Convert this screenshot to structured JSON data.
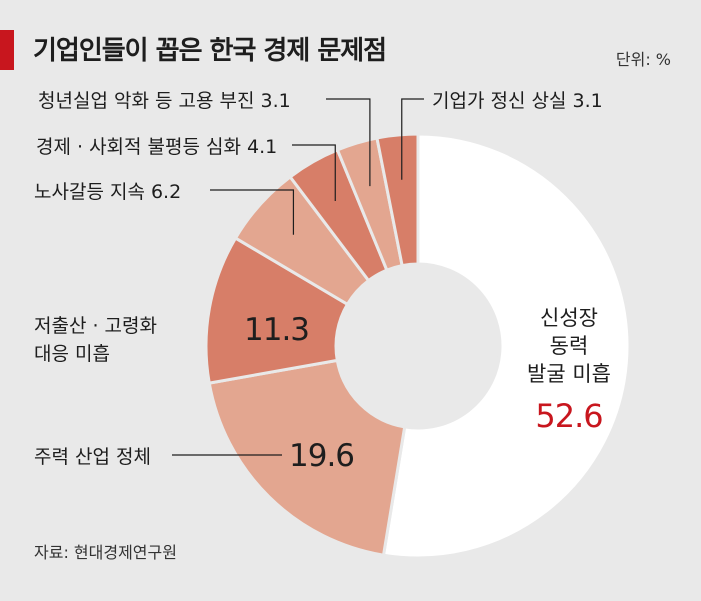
{
  "title": "기업인들이 꼽은 한국 경제 문제점",
  "unit_label": "단위: %",
  "source_label": "자료: 현대경제연구원",
  "colors": {
    "accent": "#c8161e",
    "background": "#e9e9e9"
  },
  "chart_data": {
    "type": "pie",
    "donut": true,
    "slices": [
      {
        "label": "신성장 동력 발굴 미흡",
        "value": 52.6,
        "color": "#ffffff"
      },
      {
        "label": "주력 산업 정체",
        "value": 19.6,
        "color": "#e3a690"
      },
      {
        "label": "저출산 · 고령화 대응 미흡",
        "value": 11.3,
        "color": "#d77e68"
      },
      {
        "label": "노사갈등 지속",
        "value": 6.2,
        "color": "#e3a690"
      },
      {
        "label": "경제 · 사회적 불평등 심화",
        "value": 4.1,
        "color": "#d77e68"
      },
      {
        "label": "청년실업 악화 등 고용 부진",
        "value": 3.1,
        "color": "#e3a690"
      },
      {
        "label": "기업가 정신 상실",
        "value": 3.1,
        "color": "#d77e68"
      }
    ]
  }
}
